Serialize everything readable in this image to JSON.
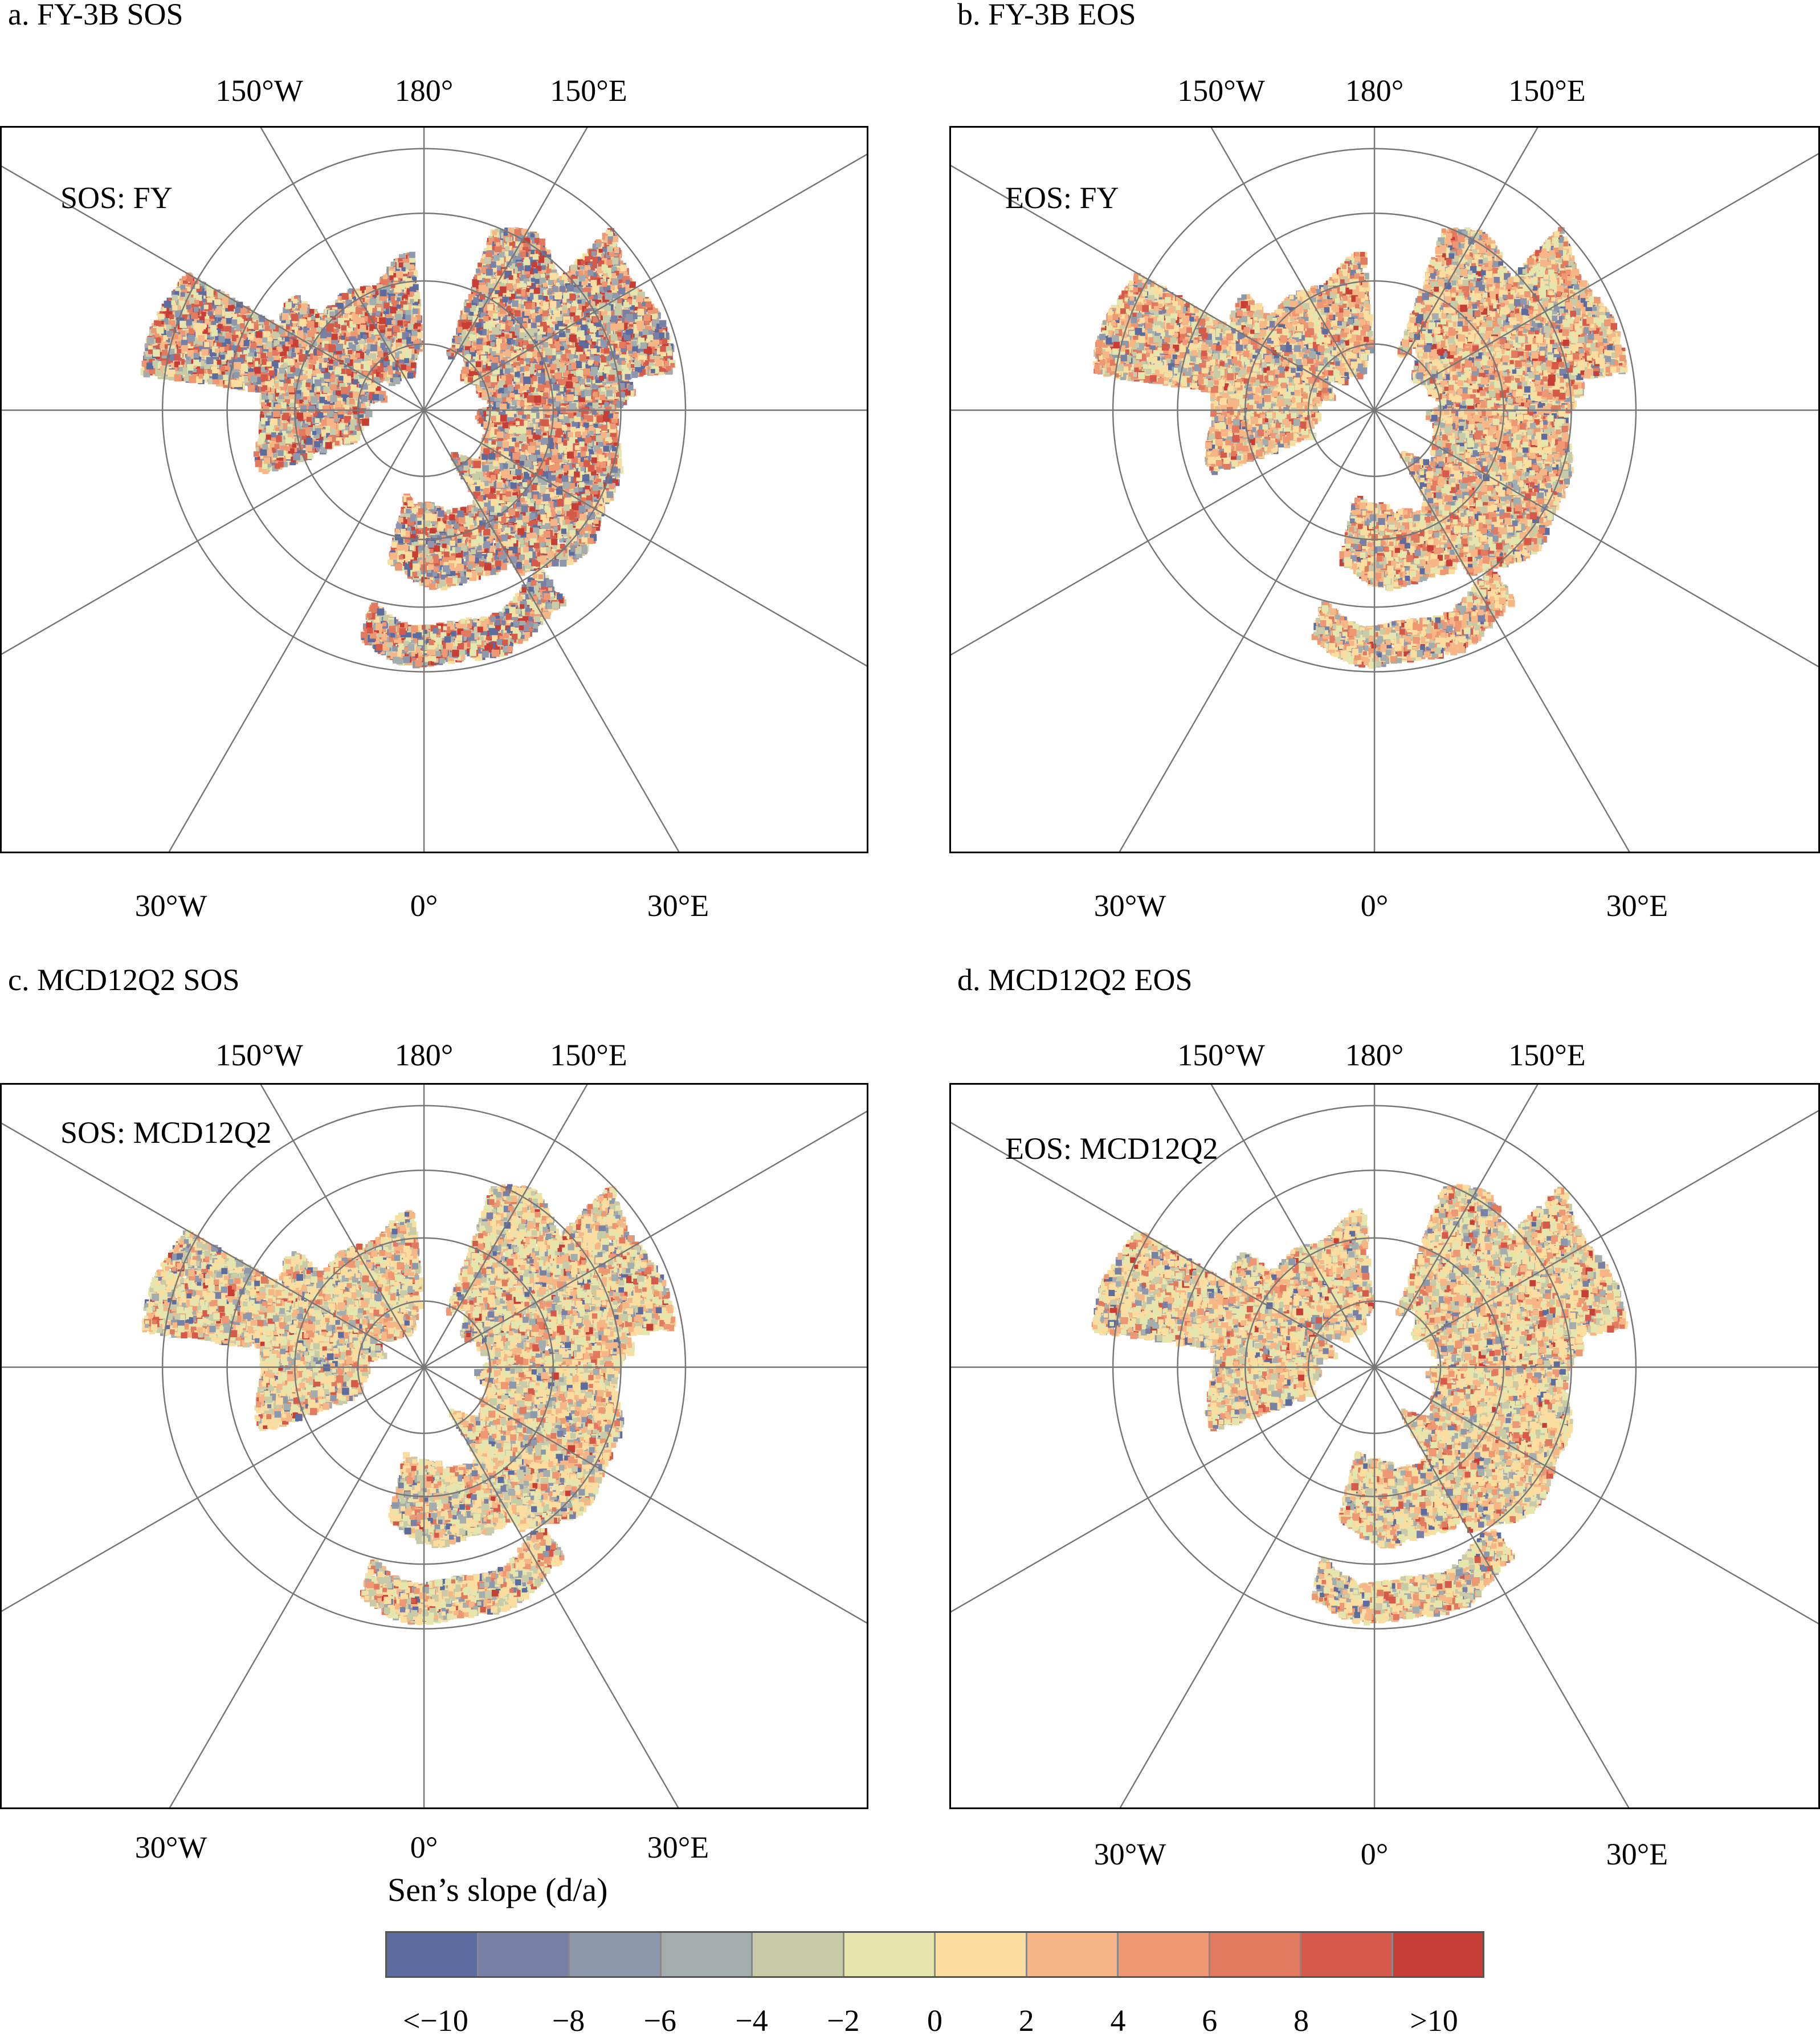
{
  "panels": [
    {
      "id": "a",
      "title": "a. FY-3B SOS",
      "inset": "SOS: FY",
      "top_labels": [
        "150°W",
        "180°",
        "150°E"
      ],
      "bottom_labels": [
        "30°W",
        "0°",
        "30°E"
      ],
      "palette_bias": "fy_sos"
    },
    {
      "id": "b",
      "title": "b. FY-3B EOS",
      "inset": "EOS: FY",
      "top_labels": [
        "150°W",
        "180°",
        "150°E"
      ],
      "bottom_labels": [
        "30°W",
        "0°",
        "30°E"
      ],
      "palette_bias": "fy_eos"
    },
    {
      "id": "c",
      "title": "c. MCD12Q2 SOS",
      "inset": "SOS: MCD12Q2",
      "top_labels": [
        "150°W",
        "180°",
        "150°E"
      ],
      "bottom_labels": [
        "30°W",
        "0°",
        "30°E"
      ],
      "palette_bias": "mcd_sos"
    },
    {
      "id": "d",
      "title": "d. MCD12Q2 EOS",
      "inset": "EOS: MCD12Q2",
      "top_labels": [
        "150°W",
        "180°",
        "150°E"
      ],
      "bottom_labels": [
        "30°W",
        "0°",
        "30°E"
      ],
      "palette_bias": "mcd_eos"
    }
  ],
  "legend": {
    "title": "Sen’s slope (d/a)",
    "tick_labels": [
      "<−10",
      "−8",
      "−6",
      "−4",
      "−2",
      "0",
      "2",
      "4",
      "6",
      "8",
      ">10"
    ],
    "colors": [
      "#5d6c9e",
      "#7880a6",
      "#8e98ad",
      "#a4adad",
      "#c7cba8",
      "#e4e6ae",
      "#fbdd9f",
      "#f6b685",
      "#ee9773",
      "#e27a60",
      "#d55a49",
      "#c63e35"
    ]
  }
}
